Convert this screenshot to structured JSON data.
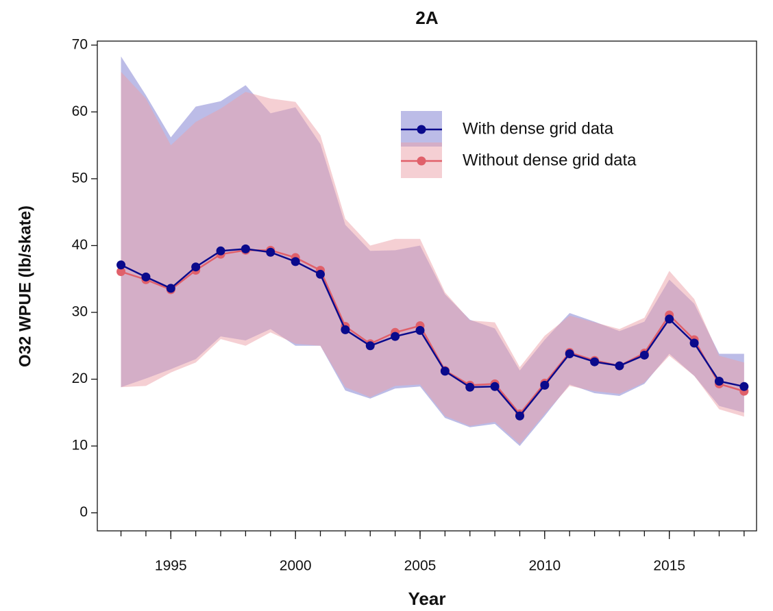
{
  "chart_data": {
    "type": "line",
    "title": "2A",
    "x_label": "Year",
    "y_label": "O32 WPUE (lb/skate)",
    "x": [
      1993,
      1994,
      1995,
      1996,
      1997,
      1998,
      1999,
      2000,
      2001,
      2002,
      2003,
      2004,
      2005,
      2006,
      2007,
      2008,
      2009,
      2010,
      2011,
      2012,
      2013,
      2014,
      2015,
      2016,
      2017,
      2018
    ],
    "xlim": [
      1992.05,
      2018.5
    ],
    "xticks": [
      1995,
      2000,
      2005,
      2010,
      2015
    ],
    "ylim": [
      -2.7,
      70.6
    ],
    "yticks": [
      0,
      10,
      20,
      30,
      40,
      50,
      60,
      70
    ],
    "legend": "upper-right",
    "series": [
      {
        "name": "With dense grid data",
        "color": "#0a0a8c",
        "band_color": "#7a7ad0",
        "values": [
          37.1,
          35.3,
          33.6,
          36.8,
          39.2,
          39.5,
          39.0,
          37.6,
          35.7,
          27.4,
          25.0,
          26.4,
          27.3,
          21.2,
          18.8,
          18.9,
          14.5,
          19.1,
          23.8,
          22.6,
          22.0,
          23.6,
          29.0,
          25.4,
          19.7,
          18.9
        ],
        "upper": [
          68.3,
          62.5,
          56.2,
          60.8,
          61.6,
          64.0,
          59.8,
          60.7,
          55.2,
          43.1,
          39.2,
          39.3,
          40.0,
          32.7,
          28.9,
          27.6,
          21.3,
          25.9,
          29.9,
          28.6,
          27.2,
          28.6,
          34.9,
          31.3,
          23.8,
          23.8
        ],
        "lower": [
          18.8,
          20.1,
          21.5,
          23.0,
          26.4,
          25.8,
          27.5,
          25.0,
          25.0,
          18.3,
          17.1,
          18.6,
          18.9,
          14.2,
          12.8,
          13.3,
          10.0,
          14.5,
          19.2,
          17.9,
          17.5,
          19.3,
          23.8,
          20.5,
          16.0,
          15.0
        ]
      },
      {
        "name": "Without dense grid data",
        "color": "#e0606a",
        "band_color": "#eba0a8",
        "values": [
          36.1,
          34.9,
          33.4,
          36.3,
          38.7,
          39.3,
          39.3,
          38.2,
          36.3,
          27.9,
          25.3,
          27.0,
          28.0,
          21.3,
          19.1,
          19.3,
          14.8,
          19.4,
          24.0,
          22.8,
          22.0,
          23.9,
          29.6,
          25.9,
          19.3,
          18.2
        ],
        "upper": [
          66.0,
          62.0,
          55.0,
          58.5,
          60.5,
          63.0,
          62.0,
          61.5,
          56.5,
          44.0,
          40.0,
          41.0,
          41.0,
          33.0,
          28.8,
          28.5,
          21.8,
          26.5,
          29.5,
          28.5,
          27.5,
          29.2,
          36.2,
          32.0,
          23.5,
          22.5
        ],
        "lower": [
          18.8,
          19.0,
          21.0,
          22.5,
          26.0,
          25.0,
          27.0,
          25.3,
          25.0,
          18.8,
          17.3,
          19.0,
          19.2,
          14.5,
          13.0,
          13.6,
          10.3,
          14.8,
          19.0,
          18.2,
          17.8,
          19.5,
          23.5,
          20.5,
          15.5,
          14.4
        ]
      }
    ]
  }
}
